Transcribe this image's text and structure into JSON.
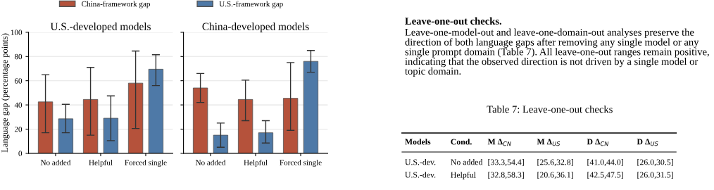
{
  "chart_data": [
    {
      "type": "bar",
      "title": "U.S.-developed models",
      "ylabel": "Language gap (percentage points)",
      "categories": [
        "No added",
        "Helpful",
        "Forced single"
      ],
      "series": [
        {
          "name": "China-framework gap",
          "color": "#b5523b",
          "values": [
            42.5,
            44.5,
            58
          ],
          "errors": [
            [
              17,
              65
            ],
            [
              15,
              71
            ],
            [
              20.5,
              84.5
            ]
          ]
        },
        {
          "name": "U.S.-framework gap",
          "color": "#4e79a7",
          "values": [
            28.5,
            29,
            69.5
          ],
          "errors": [
            [
              17,
              40.5
            ],
            [
              10.5,
              47.5
            ],
            [
              56,
              81.5
            ]
          ]
        }
      ],
      "ylim": [
        0,
        100
      ],
      "yticks": [
        0,
        20,
        40,
        60,
        80,
        100
      ],
      "grid": "y",
      "legend": "top"
    },
    {
      "type": "bar",
      "title": "China-developed models",
      "categories": [
        "No added",
        "Helpful",
        "Forced single"
      ],
      "series": [
        {
          "color": "#b5523b",
          "values": [
            54,
            44.5,
            45.5
          ],
          "errors": [
            [
              42,
              66
            ],
            [
              27,
              60.5
            ],
            [
              19,
              75
            ]
          ]
        },
        {
          "color": "#4e79a7",
          "values": [
            15,
            17,
            76
          ],
          "errors": [
            [
              5,
              25
            ],
            [
              8.5,
              27
            ],
            [
              67,
              85
            ]
          ]
        }
      ],
      "ylim": [
        0,
        100
      ],
      "yticks": [
        0,
        20,
        40,
        60,
        80,
        100
      ],
      "grid": "y",
      "tick_labels": "x",
      "annotations": [
        "Leave-one-out checks.",
        "Leave-one-model-out and leave-one-domain-out analyses preserve the direction of both language gaps after removing any single model or any single prompt domain (Table 7). All leave-one-out ranges remain positive, indicating that the observed direction is not driven by a single model or topic domain.",
        "Table 7: Leave-one-out checks",
        "Models",
        "Cond.",
        "M Δ$_{CN}$",
        "M Δ$_{US}$",
        "D Δ$_{CN}$",
        "D Δ$_{US}$",
        "U.S.-dev.",
        "No added",
        "[33.3,54.4]",
        "[25.6,32.8]",
        "[41.0,44.0]",
        "[26.0,30.5]",
        "U.S.-dev.",
        "Helpful",
        "[32.8,58.3]",
        "[20.6,36.1]",
        "[42.5,47.5]",
        "[26.0,31.5]"
      ]
    }
  ]
}
